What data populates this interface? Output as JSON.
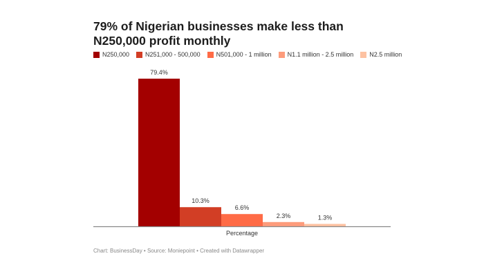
{
  "chart_data": {
    "type": "bar",
    "title": "79% of Nigerian businesses make less than N250,000 profit monthly",
    "categories": [
      "Percentage"
    ],
    "series": [
      {
        "name": "N250,000",
        "values": [
          79.4
        ],
        "label": "79.4%",
        "color": "#a30000"
      },
      {
        "name": "N251,000 - 500,000",
        "values": [
          10.3
        ],
        "label": "10.3%",
        "color": "#d23e25"
      },
      {
        "name": "N501,000 - 1 million",
        "values": [
          6.6
        ],
        "label": "6.6%",
        "color": "#ff6b46"
      },
      {
        "name": "N1.1 million - 2.5 million",
        "values": [
          2.3
        ],
        "label": "2.3%",
        "color": "#fd9c7c"
      },
      {
        "name": "N2.5 million",
        "values": [
          1.3
        ],
        "label": "1.3%",
        "color": "#fdc2a2"
      }
    ],
    "xlabel": "Percentage",
    "ylabel": "",
    "ylim": [
      0,
      79.4
    ],
    "grid": false,
    "legend": "top"
  },
  "footer": "Chart: BusinessDay • Source: Moniepoint • Created with Datawrapper"
}
